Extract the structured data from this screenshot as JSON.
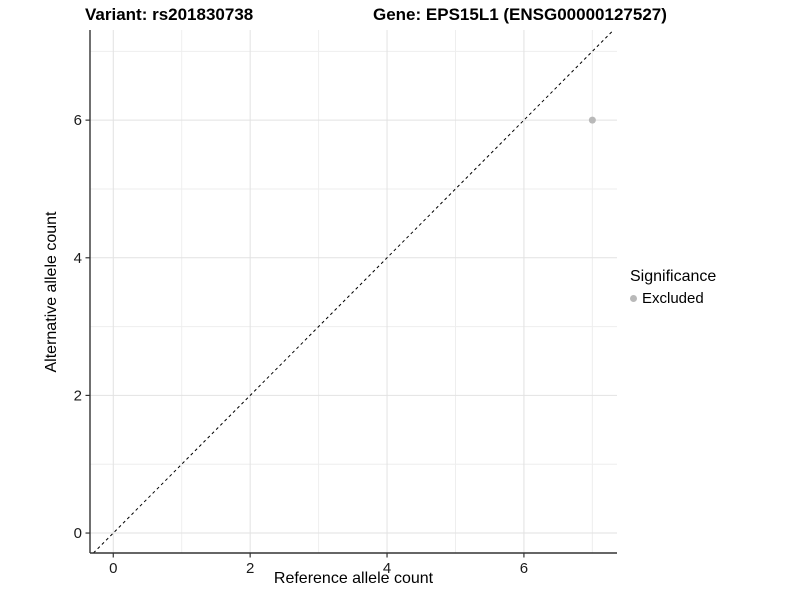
{
  "header": {
    "variant_title": "Variant: rs201830738",
    "gene_title": "Gene: EPS15L1 (ENSG00000127527)"
  },
  "chart_data": {
    "type": "scatter",
    "xlabel": "Reference allele count",
    "ylabel": "Alternative allele count",
    "xlim": [
      -0.34,
      7.36
    ],
    "ylim": [
      -0.29,
      7.31
    ],
    "x_ticks": [
      0,
      2,
      4,
      6
    ],
    "y_ticks": [
      0,
      2,
      4,
      6
    ],
    "x_minor_gridlines": [
      1,
      3,
      5,
      7
    ],
    "y_minor_gridlines": [
      1,
      3,
      5,
      7
    ],
    "grid": true,
    "points": [
      {
        "x": 7,
        "y": 6,
        "series": "Excluded"
      }
    ],
    "reference_line": {
      "type": "identity",
      "slope": 1,
      "intercept": 0,
      "style": "dashed"
    },
    "legend": {
      "title": "Significance",
      "position": "right",
      "items": [
        {
          "label": "Excluded",
          "color": "#b9b9b9"
        }
      ]
    },
    "colors": {
      "point": "#b9b9b9",
      "grid_major": "#e2e2e2",
      "grid_minor": "#eeeeee",
      "axis_line": "#333333",
      "tick_text": "#1a1a1a",
      "dash_line": "#000000",
      "background": "#ffffff"
    }
  }
}
